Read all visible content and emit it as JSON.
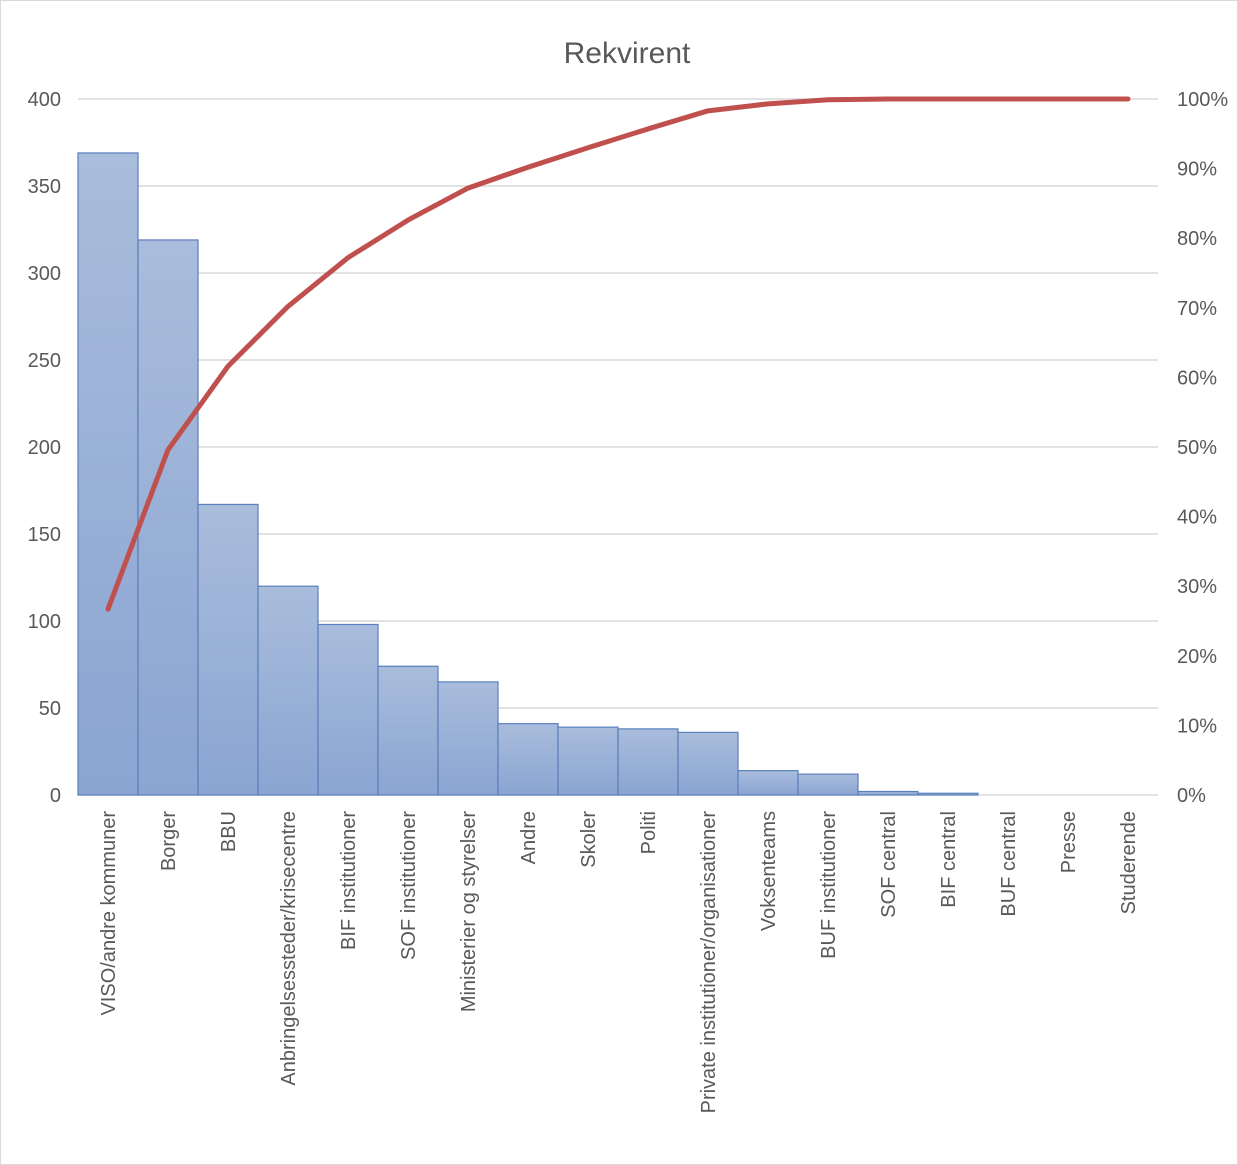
{
  "chart_data": {
    "type": "bar",
    "title": "Rekvirent",
    "categories": [
      "VISO/andre kommuner",
      "Borger",
      "BBU",
      "Anbringelsessteder/krisecentre",
      "BIF institutioner",
      "SOF institutioner",
      "Ministerier og styrelser",
      "Andre",
      "Skoler",
      "Politi",
      "Private institutioner/organisationer",
      "Voksenteams",
      "BUF institutioner",
      "SOF central",
      "BIF central",
      "BUF central",
      "Presse",
      "Studerende"
    ],
    "series": [
      {
        "type": "bar",
        "axis": "left",
        "color": "#8eaad5",
        "values": [
          369,
          319,
          167,
          120,
          98,
          74,
          65,
          41,
          39,
          38,
          36,
          14,
          12,
          2,
          1,
          0,
          0,
          0
        ]
      },
      {
        "type": "line",
        "axis": "right",
        "color": "#c0504d",
        "values": [
          26.7,
          49.6,
          61.6,
          70.2,
          77.2,
          82.6,
          87.2,
          90.2,
          93.0,
          95.7,
          98.3,
          99.3,
          99.9,
          100,
          100,
          100,
          100,
          100
        ]
      }
    ],
    "y_left": {
      "min": 0,
      "max": 400,
      "step": 50,
      "tick_labels": [
        "0",
        "50",
        "100",
        "150",
        "200",
        "250",
        "300",
        "350",
        "400"
      ]
    },
    "y_right": {
      "min": 0,
      "max": 100,
      "step": 10,
      "tick_labels": [
        "0%",
        "10%",
        "20%",
        "30%",
        "40%",
        "50%",
        "60%",
        "70%",
        "80%",
        "90%",
        "100%"
      ]
    },
    "grid": true,
    "legend": "none"
  }
}
